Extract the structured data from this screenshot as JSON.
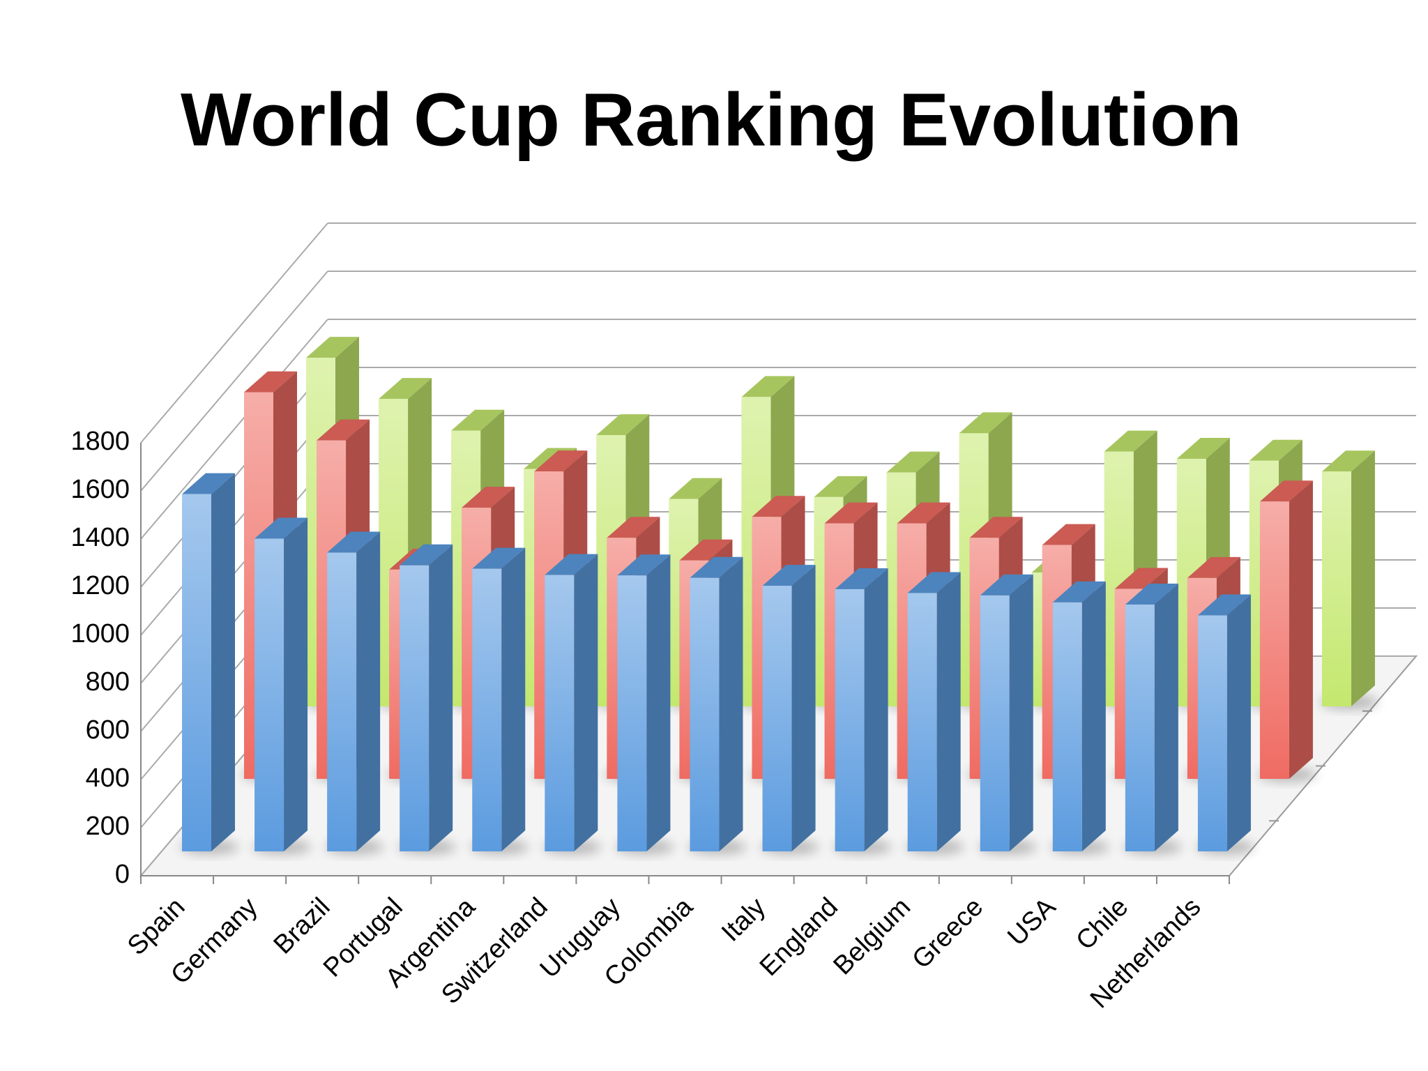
{
  "chart_data": {
    "type": "bar3d",
    "title": "World Cup Ranking Evolution",
    "categories": [
      "Spain",
      "Germany",
      "Brazil",
      "Portugal",
      "Argentina",
      "Switzerland",
      "Uruguay",
      "Colombia",
      "Italy",
      "England",
      "Belgium",
      "Greece",
      "USA",
      "Chile",
      "Netherlands"
    ],
    "series": [
      {
        "color": "#5b9bdf",
        "values": [
          1485,
          1300,
          1242,
          1189,
          1175,
          1149,
          1147,
          1137,
          1104,
          1090,
          1074,
          1064,
          1035,
          1026,
          981
        ]
      },
      {
        "color": "#ef6b62",
        "values": [
          1607,
          1407,
          870,
          1127,
          1278,
          1002,
          908,
          1089,
          1062,
          1062,
          1002,
          972,
          790,
          835,
          1153
        ]
      },
      {
        "color": "#c4e86e",
        "values": [
          1449,
          1278,
          1146,
          987,
          1127,
          862,
          1286,
          870,
          972,
          1135,
          556,
          1059,
          1029,
          1021,
          976
        ]
      }
    ],
    "ylim": [
      0,
      1800
    ],
    "yticks": [
      0,
      200,
      400,
      600,
      800,
      1000,
      1200,
      1400,
      1600,
      1800
    ],
    "grid": true
  }
}
